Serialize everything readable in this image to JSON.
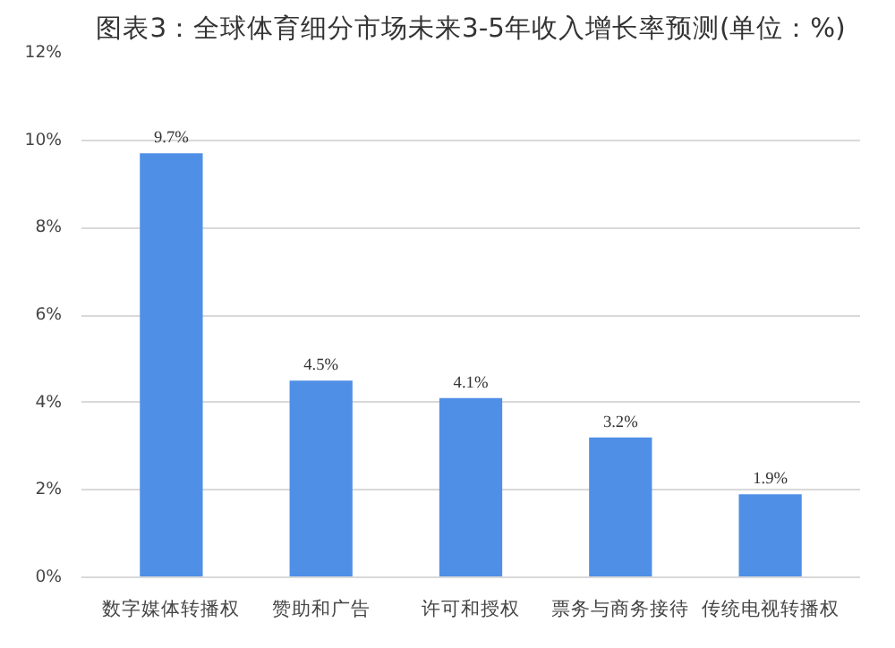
{
  "chart_data": {
    "type": "bar",
    "title": "图表3：全球体育细分市场未来3-5年收入增长率预测(单位：%)",
    "categories": [
      "数字媒体转播权",
      "赞助和广告",
      "许可和授权",
      "票务与商务接待",
      "传统电视转播权"
    ],
    "values": [
      9.7,
      4.5,
      4.1,
      3.2,
      1.9
    ],
    "value_labels": [
      "9.7%",
      "4.5%",
      "4.1%",
      "3.2%",
      "1.9%"
    ],
    "color": "#4f8fe6",
    "ylim": [
      0,
      12
    ],
    "yticks": [
      {
        "value": 0,
        "label": "0%"
      },
      {
        "value": 2,
        "label": "2%"
      },
      {
        "value": 4,
        "label": "4%"
      },
      {
        "value": 6,
        "label": "6%"
      },
      {
        "value": 8,
        "label": "8%"
      },
      {
        "value": 10,
        "label": "10%"
      },
      {
        "value": 12,
        "label": "12%"
      }
    ],
    "grid": "y"
  }
}
